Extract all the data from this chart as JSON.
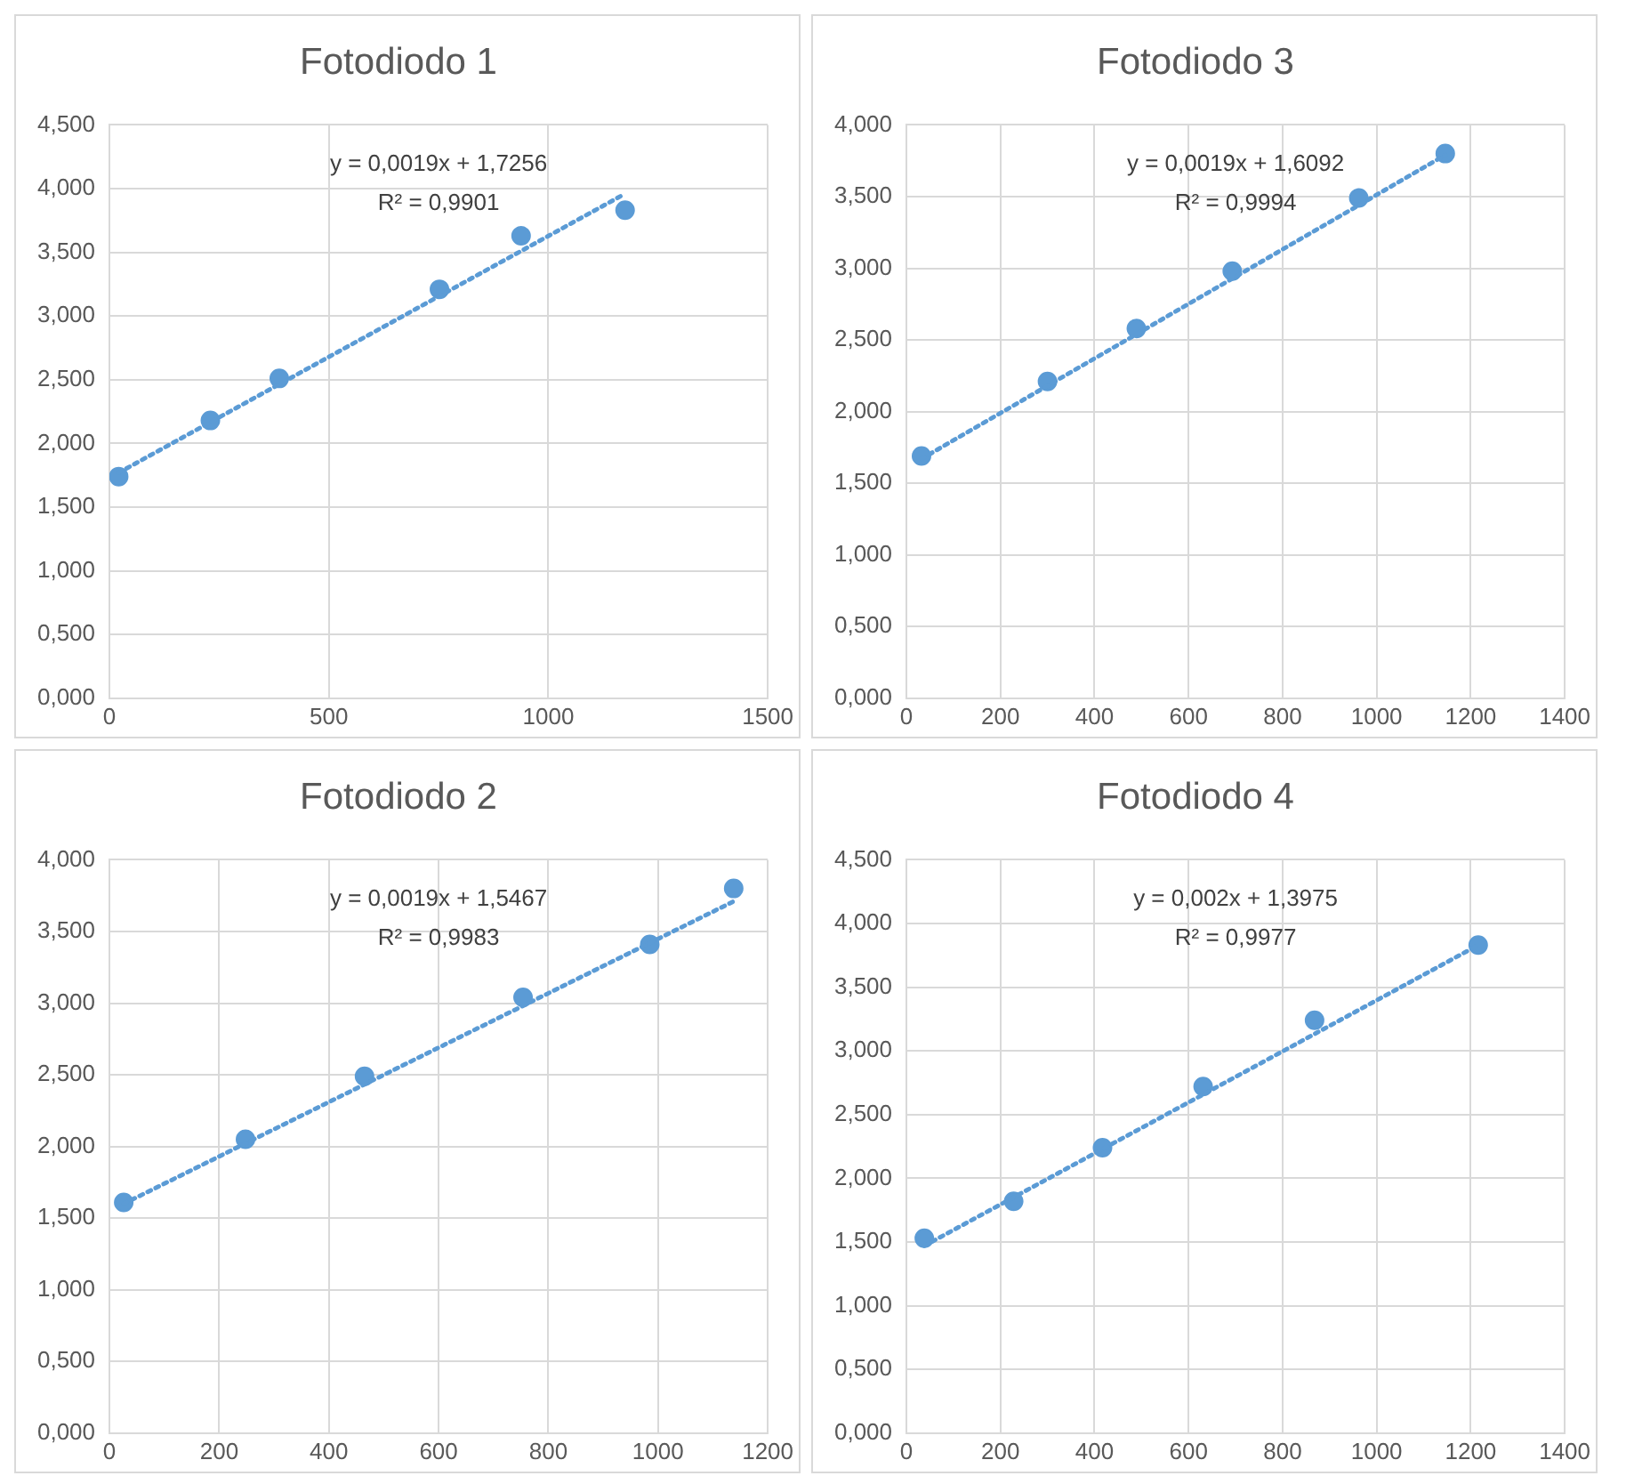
{
  "chart_data": [
    {
      "type": "scatter",
      "title": "Fotodiodo 1",
      "xlim": [
        0,
        1500
      ],
      "xticks": [
        0,
        500,
        1000,
        1500
      ],
      "ylim": [
        0,
        4.5
      ],
      "yticks": [
        {
          "value": 0,
          "label": "0,000"
        },
        {
          "value": 0.5,
          "label": "0,500"
        },
        {
          "value": 1,
          "label": "1,000"
        },
        {
          "value": 1.5,
          "label": "1,500"
        },
        {
          "value": 2,
          "label": "2,000"
        },
        {
          "value": 2.5,
          "label": "2,500"
        },
        {
          "value": 3,
          "label": "3,000"
        },
        {
          "value": 3.5,
          "label": "3,500"
        },
        {
          "value": 4,
          "label": "4,000"
        },
        {
          "value": 4.5,
          "label": "4,500"
        }
      ],
      "grid": true,
      "legend": false,
      "marker": "circle",
      "series": [
        {
          "type": "scatter",
          "color": "#5b9bd5",
          "x": [
            21,
            230,
            387,
            752,
            938,
            1175
          ],
          "values": [
            1.74,
            2.18,
            2.51,
            3.21,
            3.63,
            3.83
          ]
        },
        {
          "type": "line",
          "color": "#5b9bd5",
          "line_style": "dotted",
          "marker": "none",
          "x": [
            21,
            1175
          ],
          "values": [
            1.77,
            3.96
          ]
        }
      ],
      "annotations": [
        "y = 0,0019x + 1,7256",
        "R² = 0,9901"
      ]
    },
    {
      "type": "scatter",
      "title": "Fotodiodo 3",
      "xlim": [
        0,
        1400
      ],
      "xticks": [
        0,
        200,
        400,
        600,
        800,
        1000,
        1200,
        1400
      ],
      "ylim": [
        0,
        4
      ],
      "yticks": [
        {
          "value": 0,
          "label": "0,000"
        },
        {
          "value": 0.5,
          "label": "0,500"
        },
        {
          "value": 1,
          "label": "1,000"
        },
        {
          "value": 1.5,
          "label": "1,500"
        },
        {
          "value": 2,
          "label": "2,000"
        },
        {
          "value": 2.5,
          "label": "2,500"
        },
        {
          "value": 3,
          "label": "3,000"
        },
        {
          "value": 3.5,
          "label": "3,500"
        },
        {
          "value": 4,
          "label": "4,000"
        }
      ],
      "grid": true,
      "legend": false,
      "marker": "circle",
      "series": [
        {
          "type": "scatter",
          "color": "#5b9bd5",
          "x": [
            32,
            300,
            489,
            693,
            962,
            1146
          ],
          "values": [
            1.69,
            2.21,
            2.58,
            2.98,
            3.49,
            3.8
          ]
        },
        {
          "type": "line",
          "color": "#5b9bd5",
          "line_style": "dotted",
          "marker": "none",
          "x": [
            32,
            1146
          ],
          "values": [
            1.67,
            3.79
          ]
        }
      ],
      "annotations": [
        "y = 0,0019x + 1,6092",
        "R² = 0,9994"
      ]
    },
    {
      "type": "scatter",
      "title": "Fotodiodo 2",
      "xlim": [
        0,
        1200
      ],
      "xticks": [
        0,
        200,
        400,
        600,
        800,
        1000,
        1200
      ],
      "ylim": [
        0,
        4
      ],
      "yticks": [
        {
          "value": 0,
          "label": "0,000"
        },
        {
          "value": 0.5,
          "label": "0,500"
        },
        {
          "value": 1,
          "label": "1,000"
        },
        {
          "value": 1.5,
          "label": "1,500"
        },
        {
          "value": 2,
          "label": "2,000"
        },
        {
          "value": 2.5,
          "label": "2,500"
        },
        {
          "value": 3,
          "label": "3,000"
        },
        {
          "value": 3.5,
          "label": "3,500"
        },
        {
          "value": 4,
          "label": "4,000"
        }
      ],
      "grid": true,
      "legend": false,
      "marker": "circle",
      "series": [
        {
          "type": "scatter",
          "color": "#5b9bd5",
          "x": [
            26,
            248,
            465,
            754,
            985,
            1138
          ],
          "values": [
            1.61,
            2.05,
            2.49,
            3.04,
            3.41,
            3.8
          ]
        },
        {
          "type": "line",
          "color": "#5b9bd5",
          "line_style": "dotted",
          "marker": "none",
          "x": [
            26,
            1138
          ],
          "values": [
            1.6,
            3.71
          ]
        }
      ],
      "annotations": [
        "y = 0,0019x + 1,5467",
        "R² = 0,9983"
      ]
    },
    {
      "type": "scatter",
      "title": "Fotodiodo 4",
      "xlim": [
        0,
        1400
      ],
      "xticks": [
        0,
        200,
        400,
        600,
        800,
        1000,
        1200,
        1400
      ],
      "ylim": [
        0,
        4.5
      ],
      "yticks": [
        {
          "value": 0,
          "label": "0,000"
        },
        {
          "value": 0.5,
          "label": "0,500"
        },
        {
          "value": 1,
          "label": "1,000"
        },
        {
          "value": 1.5,
          "label": "1,500"
        },
        {
          "value": 2,
          "label": "2,000"
        },
        {
          "value": 2.5,
          "label": "2,500"
        },
        {
          "value": 3,
          "label": "3,000"
        },
        {
          "value": 3.5,
          "label": "3,500"
        },
        {
          "value": 4,
          "label": "4,000"
        },
        {
          "value": 4.5,
          "label": "4,500"
        }
      ],
      "grid": true,
      "legend": false,
      "marker": "circle",
      "series": [
        {
          "type": "scatter",
          "color": "#5b9bd5",
          "x": [
            38,
            228,
            417,
            631,
            868,
            1216
          ],
          "values": [
            1.53,
            1.82,
            2.24,
            2.72,
            3.24,
            3.83
          ]
        },
        {
          "type": "line",
          "color": "#5b9bd5",
          "line_style": "dotted",
          "marker": "none",
          "x": [
            38,
            1216
          ],
          "values": [
            1.47,
            3.83
          ]
        }
      ],
      "annotations": [
        "y = 0,002x + 1,3975",
        "R² = 0,9977"
      ]
    }
  ]
}
